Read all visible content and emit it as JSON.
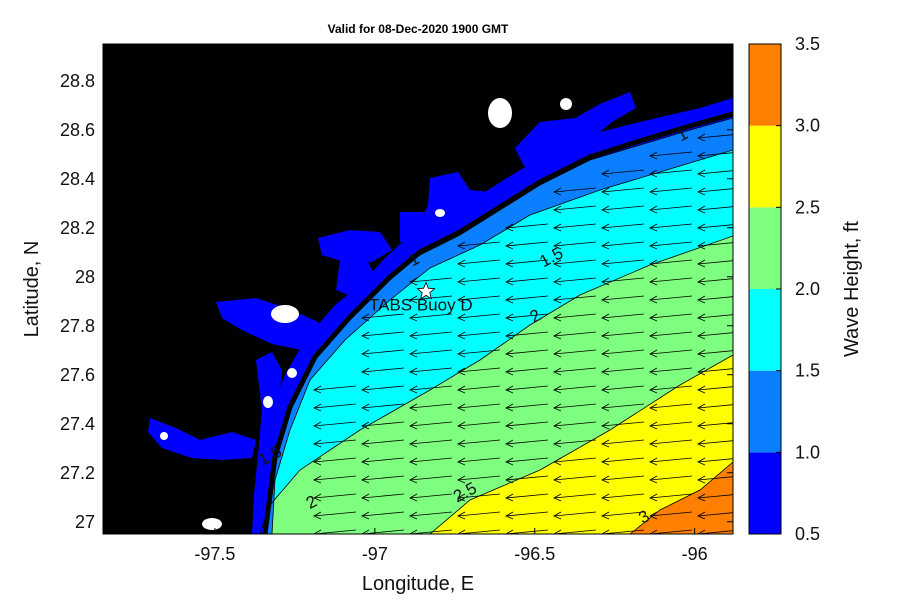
{
  "title": "Valid for 08-Dec-2020 1900 GMT",
  "chart_data": {
    "type": "heatmap",
    "title": "Valid for 08-Dec-2020 1900 GMT",
    "xlabel": "Longitude, E",
    "ylabel": "Latitude, N",
    "xlim": [
      -97.85,
      -95.88
    ],
    "ylim": [
      26.95,
      28.95
    ],
    "xticks": [
      -97.5,
      -97,
      -96.5,
      -96
    ],
    "xtick_labels": [
      "-97.5",
      "-97",
      "-96.5",
      "-96"
    ],
    "yticks": [
      27,
      27.2,
      27.4,
      27.6,
      27.8,
      28,
      28.2,
      28.4,
      28.6,
      28.8
    ],
    "ytick_labels": [
      "27",
      "27.2",
      "27.4",
      "27.6",
      "27.8",
      "28",
      "28.2",
      "28.4",
      "28.6",
      "28.8"
    ],
    "colorbar": {
      "label": "Wave Height, ft",
      "levels": [
        0.5,
        1.0,
        1.5,
        2.0,
        2.5,
        3.0,
        3.5
      ],
      "tick_labels": [
        "0.5",
        "1.0",
        "1.5",
        "2.0",
        "2.5",
        "3.0",
        "3.5"
      ],
      "colors": [
        "#0000ff",
        "#0a7fff",
        "#00ffff",
        "#7fff7f",
        "#ffff00",
        "#ff7f00"
      ]
    },
    "contour_labels": [
      {
        "text": "1",
        "lon": -96.03,
        "lat": 28.56
      },
      {
        "text": "1",
        "lon": -96.87,
        "lat": 28.05
      },
      {
        "text": "1.5",
        "lon": -96.44,
        "lat": 28.06
      },
      {
        "text": "2",
        "lon": -96.49,
        "lat": 27.82
      },
      {
        "text": "1.5",
        "lon": -97.32,
        "lat": 27.25
      },
      {
        "text": "2",
        "lon": -97.19,
        "lat": 27.06
      },
      {
        "text": "2.5",
        "lon": -96.71,
        "lat": 27.1
      },
      {
        "text": "3",
        "lon": -96.15,
        "lat": 27.0
      }
    ],
    "station": {
      "name": "TABS Buoy D",
      "lon": -96.84,
      "lat": 27.94
    },
    "wave_direction": "toward west (arrows point west-southwest)",
    "grid": false
  }
}
